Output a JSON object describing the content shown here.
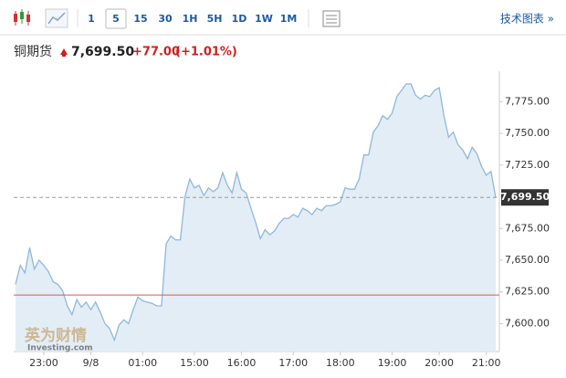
{
  "toolbar": {
    "intervals": [
      "1",
      "5",
      "15",
      "30",
      "1H",
      "5H",
      "1D",
      "1W",
      "1M"
    ],
    "selected": "5",
    "link": "技术图表 »"
  },
  "header": {
    "name": "铜期货",
    "price": "7,699.50",
    "change": "+77.00",
    "change_pct": "(+1.01%)"
  },
  "chart_data": {
    "type": "area",
    "values": [
      7631,
      7646,
      7640,
      7660,
      7643,
      7650,
      7646,
      7641,
      7633,
      7631,
      7626,
      7614,
      7607,
      7619,
      7613,
      7617,
      7611,
      7617,
      7609,
      7600,
      7596,
      7587,
      7599,
      7603,
      7600,
      7611,
      7621,
      7618,
      7617,
      7616,
      7614,
      7614,
      7663,
      7669,
      7666,
      7666,
      7700,
      7714,
      7707,
      7709,
      7701,
      7707,
      7704,
      7707,
      7719,
      7709,
      7703,
      7719,
      7706,
      7703,
      7691,
      7680,
      7667,
      7674,
      7670,
      7673,
      7679,
      7683,
      7683,
      7686,
      7684,
      7691,
      7689,
      7686,
      7691,
      7689,
      7693,
      7693,
      7694,
      7696,
      7707,
      7706,
      7706,
      7714,
      7733,
      7733,
      7751,
      7756,
      7764,
      7761,
      7766,
      7779,
      7784,
      7789,
      7789,
      7780,
      7777,
      7780,
      7779,
      7784,
      7786,
      7764,
      7747,
      7751,
      7741,
      7737,
      7730,
      7739,
      7734,
      7724,
      7717,
      7720,
      7699.5
    ],
    "color": "#8fb8dc",
    "fill": "#e3edf6",
    "xlim": [
      0,
      102
    ],
    "xticks": [
      {
        "value": 6,
        "label": "23:00"
      },
      {
        "value": 16,
        "label": "9/8"
      },
      {
        "value": 27,
        "label": "01:00"
      },
      {
        "value": 38,
        "label": "15:00"
      },
      {
        "value": 48,
        "label": "16:00"
      },
      {
        "value": 59,
        "label": "17:00"
      },
      {
        "value": 69,
        "label": "18:00"
      },
      {
        "value": 80,
        "label": "19:00"
      },
      {
        "value": 90,
        "label": "20:00"
      },
      {
        "value": 100,
        "label": "21:00"
      }
    ],
    "ylim": [
      7578,
      7799
    ],
    "yticks": [
      {
        "value": 7600,
        "label": "7,600.00"
      },
      {
        "value": 7625,
        "label": "7,625.00"
      },
      {
        "value": 7650,
        "label": "7,650.00"
      },
      {
        "value": 7675,
        "label": "7,675.00"
      },
      {
        "value": 7725,
        "label": "7,725.00"
      },
      {
        "value": 7750,
        "label": "7,750.00"
      },
      {
        "value": 7775,
        "label": "7,775.00"
      }
    ],
    "last_price": {
      "value": 7699.5,
      "label": "7,699.50"
    },
    "reference_line": 7622.5,
    "watermark": [
      "英为财情",
      "Investing.com"
    ]
  }
}
